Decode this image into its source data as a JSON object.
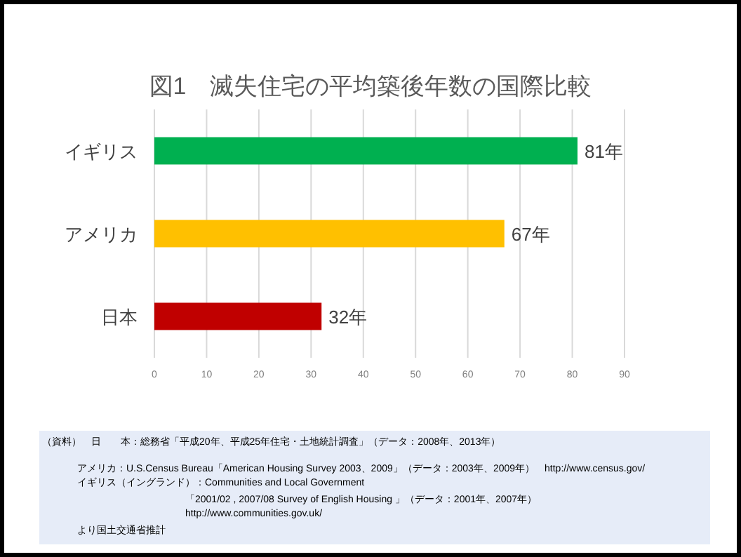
{
  "chart_data": {
    "type": "bar",
    "orientation": "horizontal",
    "title": "図1　滅失住宅の平均築後年数の国際比較",
    "categories": [
      "イギリス",
      "アメリカ",
      "日本"
    ],
    "values": [
      81,
      67,
      32
    ],
    "colors": [
      "#00b050",
      "#ffc000",
      "#c00000"
    ],
    "value_labels": [
      "81年",
      "67年",
      "32年"
    ],
    "xlim": [
      0,
      90
    ],
    "xticks": [
      0,
      10,
      20,
      30,
      40,
      50,
      60,
      70,
      80,
      90
    ],
    "grid": "x",
    "annotations": [
      "（資料）　日　　本：総務省「平成20年、平成25年住宅・土地統計調査」（データ：2008年、2013年）",
      "アメリカ：U.S.Census Bureau「American Housing Survey 2003、2009」（データ：2003年、2009年）　http://www.census.gov/",
      "イギリス（イングランド）：Communities and Local Government",
      "「2001/02 , 2007/08 Survey of English Housing 」（データ：2001年、2007年）",
      "http://www.communities.gov.uk/",
      "より国土交通省推計"
    ]
  }
}
